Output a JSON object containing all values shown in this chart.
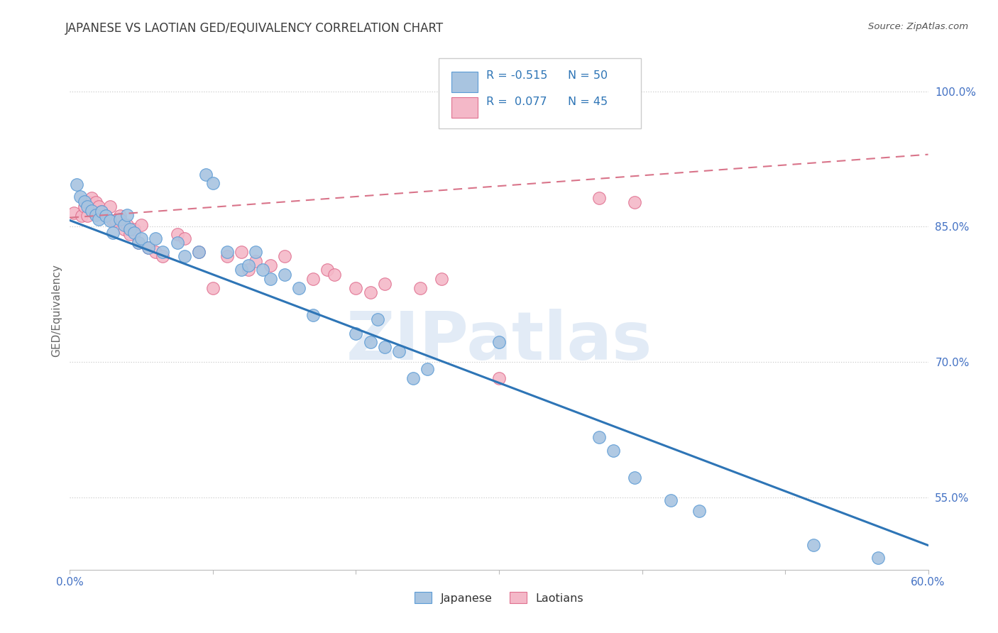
{
  "title": "JAPANESE VS LAOTIAN GED/EQUIVALENCY CORRELATION CHART",
  "source": "Source: ZipAtlas.com",
  "ylabel": "GED/Equivalency",
  "ytick_labels": [
    "100.0%",
    "85.0%",
    "70.0%",
    "55.0%"
  ],
  "ytick_values": [
    1.0,
    0.85,
    0.7,
    0.55
  ],
  "xmin": 0.0,
  "xmax": 0.6,
  "ymin": 0.47,
  "ymax": 1.045,
  "watermark": "ZIPatlas",
  "legend": {
    "blue_r": "-0.515",
    "blue_n": "50",
    "pink_r": "0.077",
    "pink_n": "45"
  },
  "blue_points": [
    [
      0.005,
      0.897
    ],
    [
      0.007,
      0.883
    ],
    [
      0.01,
      0.878
    ],
    [
      0.012,
      0.872
    ],
    [
      0.015,
      0.868
    ],
    [
      0.018,
      0.863
    ],
    [
      0.02,
      0.858
    ],
    [
      0.022,
      0.867
    ],
    [
      0.025,
      0.862
    ],
    [
      0.028,
      0.857
    ],
    [
      0.03,
      0.843
    ],
    [
      0.035,
      0.858
    ],
    [
      0.038,
      0.852
    ],
    [
      0.04,
      0.863
    ],
    [
      0.042,
      0.847
    ],
    [
      0.045,
      0.843
    ],
    [
      0.048,
      0.832
    ],
    [
      0.05,
      0.837
    ],
    [
      0.055,
      0.827
    ],
    [
      0.06,
      0.837
    ],
    [
      0.065,
      0.822
    ],
    [
      0.075,
      0.832
    ],
    [
      0.08,
      0.817
    ],
    [
      0.09,
      0.822
    ],
    [
      0.095,
      0.908
    ],
    [
      0.1,
      0.898
    ],
    [
      0.11,
      0.822
    ],
    [
      0.12,
      0.802
    ],
    [
      0.125,
      0.807
    ],
    [
      0.13,
      0.822
    ],
    [
      0.14,
      0.792
    ],
    [
      0.15,
      0.797
    ],
    [
      0.16,
      0.782
    ],
    [
      0.17,
      0.752
    ],
    [
      0.2,
      0.732
    ],
    [
      0.21,
      0.722
    ],
    [
      0.215,
      0.747
    ],
    [
      0.23,
      0.712
    ],
    [
      0.25,
      0.692
    ],
    [
      0.3,
      0.722
    ],
    [
      0.37,
      0.617
    ],
    [
      0.395,
      0.572
    ],
    [
      0.42,
      0.547
    ],
    [
      0.44,
      0.535
    ],
    [
      0.52,
      0.497
    ],
    [
      0.565,
      0.483
    ],
    [
      0.135,
      0.802
    ],
    [
      0.22,
      0.717
    ],
    [
      0.24,
      0.682
    ],
    [
      0.38,
      0.602
    ]
  ],
  "pink_points": [
    [
      0.003,
      0.865
    ],
    [
      0.008,
      0.862
    ],
    [
      0.01,
      0.872
    ],
    [
      0.012,
      0.862
    ],
    [
      0.013,
      0.877
    ],
    [
      0.015,
      0.882
    ],
    [
      0.016,
      0.867
    ],
    [
      0.018,
      0.877
    ],
    [
      0.02,
      0.872
    ],
    [
      0.022,
      0.867
    ],
    [
      0.025,
      0.862
    ],
    [
      0.028,
      0.872
    ],
    [
      0.03,
      0.857
    ],
    [
      0.032,
      0.857
    ],
    [
      0.035,
      0.862
    ],
    [
      0.038,
      0.847
    ],
    [
      0.04,
      0.852
    ],
    [
      0.042,
      0.842
    ],
    [
      0.045,
      0.847
    ],
    [
      0.048,
      0.832
    ],
    [
      0.05,
      0.852
    ],
    [
      0.055,
      0.827
    ],
    [
      0.06,
      0.822
    ],
    [
      0.065,
      0.817
    ],
    [
      0.075,
      0.842
    ],
    [
      0.08,
      0.837
    ],
    [
      0.09,
      0.822
    ],
    [
      0.1,
      0.782
    ],
    [
      0.11,
      0.817
    ],
    [
      0.12,
      0.822
    ],
    [
      0.125,
      0.802
    ],
    [
      0.13,
      0.812
    ],
    [
      0.14,
      0.807
    ],
    [
      0.15,
      0.817
    ],
    [
      0.17,
      0.792
    ],
    [
      0.18,
      0.802
    ],
    [
      0.185,
      0.797
    ],
    [
      0.2,
      0.782
    ],
    [
      0.21,
      0.777
    ],
    [
      0.22,
      0.787
    ],
    [
      0.245,
      0.782
    ],
    [
      0.26,
      0.792
    ],
    [
      0.3,
      0.682
    ],
    [
      0.37,
      0.882
    ],
    [
      0.395,
      0.877
    ]
  ],
  "blue_line": {
    "x0": 0.0,
    "y0": 0.857,
    "x1": 0.6,
    "y1": 0.497
  },
  "pink_line": {
    "x0": 0.0,
    "y0": 0.86,
    "x1": 0.6,
    "y1": 0.93
  },
  "background_color": "#ffffff",
  "title_color": "#3c3c3c",
  "source_color": "#555555",
  "axis_label_color": "#4472c4",
  "grid_color": "#cccccc",
  "blue_dot_facecolor": "#a8c4e0",
  "blue_dot_edgecolor": "#5b9bd5",
  "pink_dot_facecolor": "#f4b8c8",
  "pink_dot_edgecolor": "#e07090",
  "blue_line_color": "#2e75b6",
  "pink_line_color": "#d9748a",
  "watermark_color": "#d0dff0",
  "ylabel_color": "#666666"
}
